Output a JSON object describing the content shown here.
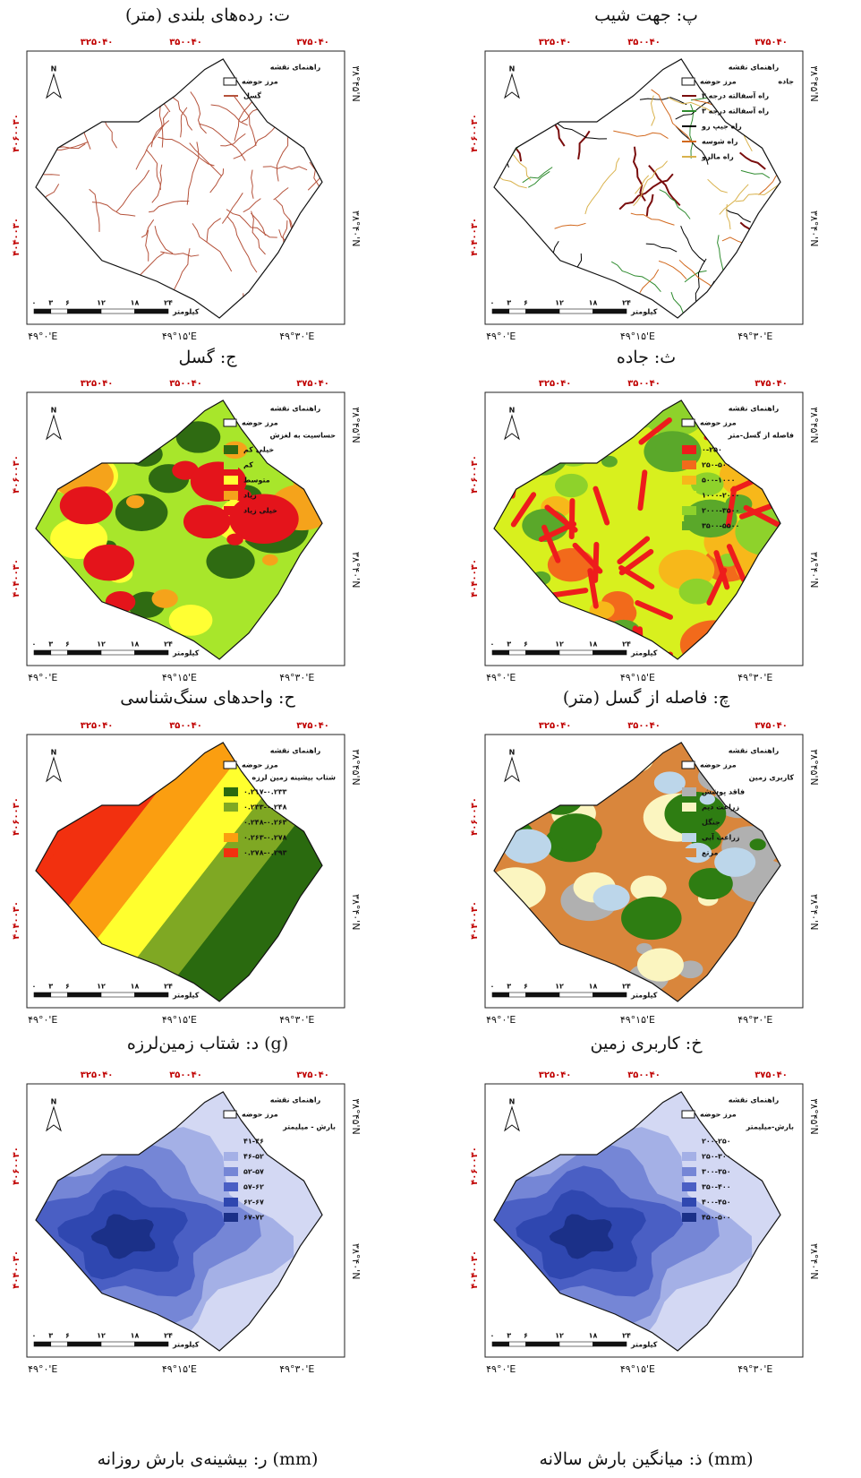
{
  "captions": [
    [
      "ت: رده‌های بلندی (متر)",
      "پ: جهت شیب"
    ],
    [
      "ج: گسل",
      "ث: جاده"
    ],
    [
      "ح: واحدهای سنگ‌شناسی",
      "چ: فاصله از گسل (متر)"
    ],
    [
      "د: شتاب زمین‌لرزه (g)",
      "خ: کاربری زمین"
    ],
    [
      "ر: بیشینه‌ی بارش روزانه (mm)",
      "ذ: میانگین بارش سالانه (mm)"
    ]
  ],
  "frame": {
    "top_labels": [
      "۳۲۵۰۴۰",
      "۳۵۰۰۴۰",
      "۳۷۵۰۴۰"
    ],
    "left_labels": [
      "۴۰۶۰۰۳۰",
      "۴۰۴۰۰۳۰"
    ],
    "right_labels": [
      "۳۸°۴۵'N",
      "۳۸°۴۰'N"
    ],
    "bottom_labels": [
      "۴۹°۰'E",
      "۴۹°۱۵'E",
      "۴۹°۳۰'E"
    ],
    "scale_labels": [
      "۰",
      "۳",
      "۶",
      "۱۲",
      "۱۸",
      "۲۴"
    ],
    "scale_unit": "کیلومتر",
    "north": "N",
    "legend_title": "راهنمای نقشه",
    "boundary": "مرز حوضه"
  },
  "maps": [
    {
      "style": "lines",
      "items": [
        {
          "label": "گسل",
          "color": "#b5523b"
        }
      ]
    },
    {
      "style": "lines",
      "legend_subtitle": "جاده",
      "items": [
        {
          "label": "راه آسفالته درجه ۲",
          "color": "#7a0d0d"
        },
        {
          "label": "راه آسفالته درجه ۳",
          "color": "#2e8b2e"
        },
        {
          "label": "راه جیپ رو",
          "color": "#000000"
        },
        {
          "label": "راه شوسه",
          "color": "#d2691e"
        },
        {
          "label": "راه مالرو",
          "color": "#d9b24c"
        }
      ]
    },
    {
      "style": "patches",
      "legend_subtitle": "حساسیت به لغزش",
      "items": [
        {
          "label": "خیلی کم",
          "color": "#2f6b12"
        },
        {
          "label": "کم",
          "color": "#a8e62b"
        },
        {
          "label": "متوسط",
          "color": "#ffff33"
        },
        {
          "label": "زیاد",
          "color": "#f5a31b"
        },
        {
          "label": "خیلی زیاد",
          "color": "#e4141b"
        }
      ]
    },
    {
      "style": "patches",
      "legend_subtitle": "فاصله از گسل-متر",
      "items": [
        {
          "label": "۰-۲۵۰",
          "color": "#ee1c1c"
        },
        {
          "label": "۲۵۰-۵۰۰",
          "color": "#f26a1b"
        },
        {
          "label": "۵۰۰-۱۰۰۰",
          "color": "#f7b81a"
        },
        {
          "label": "۱۰۰۰-۲۰۰۰",
          "color": "#d8f01e"
        },
        {
          "label": "۲۰۰۰-۳۵۰۰",
          "color": "#8ed22b"
        },
        {
          "label": "۳۵۰۰-۵۵۰۰",
          "color": "#5aa82a"
        }
      ]
    },
    {
      "style": "bands",
      "legend_subtitle": "شتاب بیشینه زمین لرزه",
      "items": [
        {
          "label": "۰.۲۱۷-۰.۲۳۳",
          "color": "#2a6a0f"
        },
        {
          "label": "۰.۲۳۳-۰.۲۴۸",
          "color": "#7fa823"
        },
        {
          "label": "۰.۲۴۸-۰.۲۶۳",
          "color": "#ffff2e"
        },
        {
          "label": "۰.۲۶۳-۰.۲۷۸",
          "color": "#fb9e10"
        },
        {
          "label": "۰.۲۷۸-۰.۲۹۳",
          "color": "#f2300f"
        }
      ]
    },
    {
      "style": "patches",
      "legend_subtitle": "کاربری زمین",
      "items": [
        {
          "label": "فاقد پوشش",
          "color": "#b0b0b0"
        },
        {
          "label": "زراعت دیم",
          "color": "#fbf5c0"
        },
        {
          "label": "جنگل",
          "color": "#2e7d12"
        },
        {
          "label": "زراعت آبی",
          "color": "#bcd6ea"
        },
        {
          "label": "مرتع",
          "color": "#d9863c"
        }
      ]
    },
    {
      "style": "rings",
      "legend_subtitle": "بارش - میلیمتر",
      "items": [
        {
          "label": "۴۱-۴۶",
          "color": "#d3d8f3"
        },
        {
          "label": "۴۶-۵۲",
          "color": "#a4b0e6"
        },
        {
          "label": "۵۲-۵۷",
          "color": "#7586d6"
        },
        {
          "label": "۵۷-۶۲",
          "color": "#4a5fc4"
        },
        {
          "label": "۶۲-۶۷",
          "color": "#2f47b0"
        },
        {
          "label": "۶۷-۷۲",
          "color": "#1b3088"
        }
      ]
    },
    {
      "style": "rings",
      "legend_subtitle": "بارش-میلیمتر",
      "items": [
        {
          "label": "۲۰۰-۲۵۰",
          "color": "#d3d8f3"
        },
        {
          "label": "۲۵۰-۳۰۰",
          "color": "#a4b0e6"
        },
        {
          "label": "۳۰۰-۳۵۰",
          "color": "#7586d6"
        },
        {
          "label": "۳۵۰-۴۰۰",
          "color": "#4a5fc4"
        },
        {
          "label": "۴۰۰-۴۵۰",
          "color": "#2f47b0"
        },
        {
          "label": "۴۵۰-۵۰۰",
          "color": "#1b3088"
        }
      ]
    }
  ]
}
